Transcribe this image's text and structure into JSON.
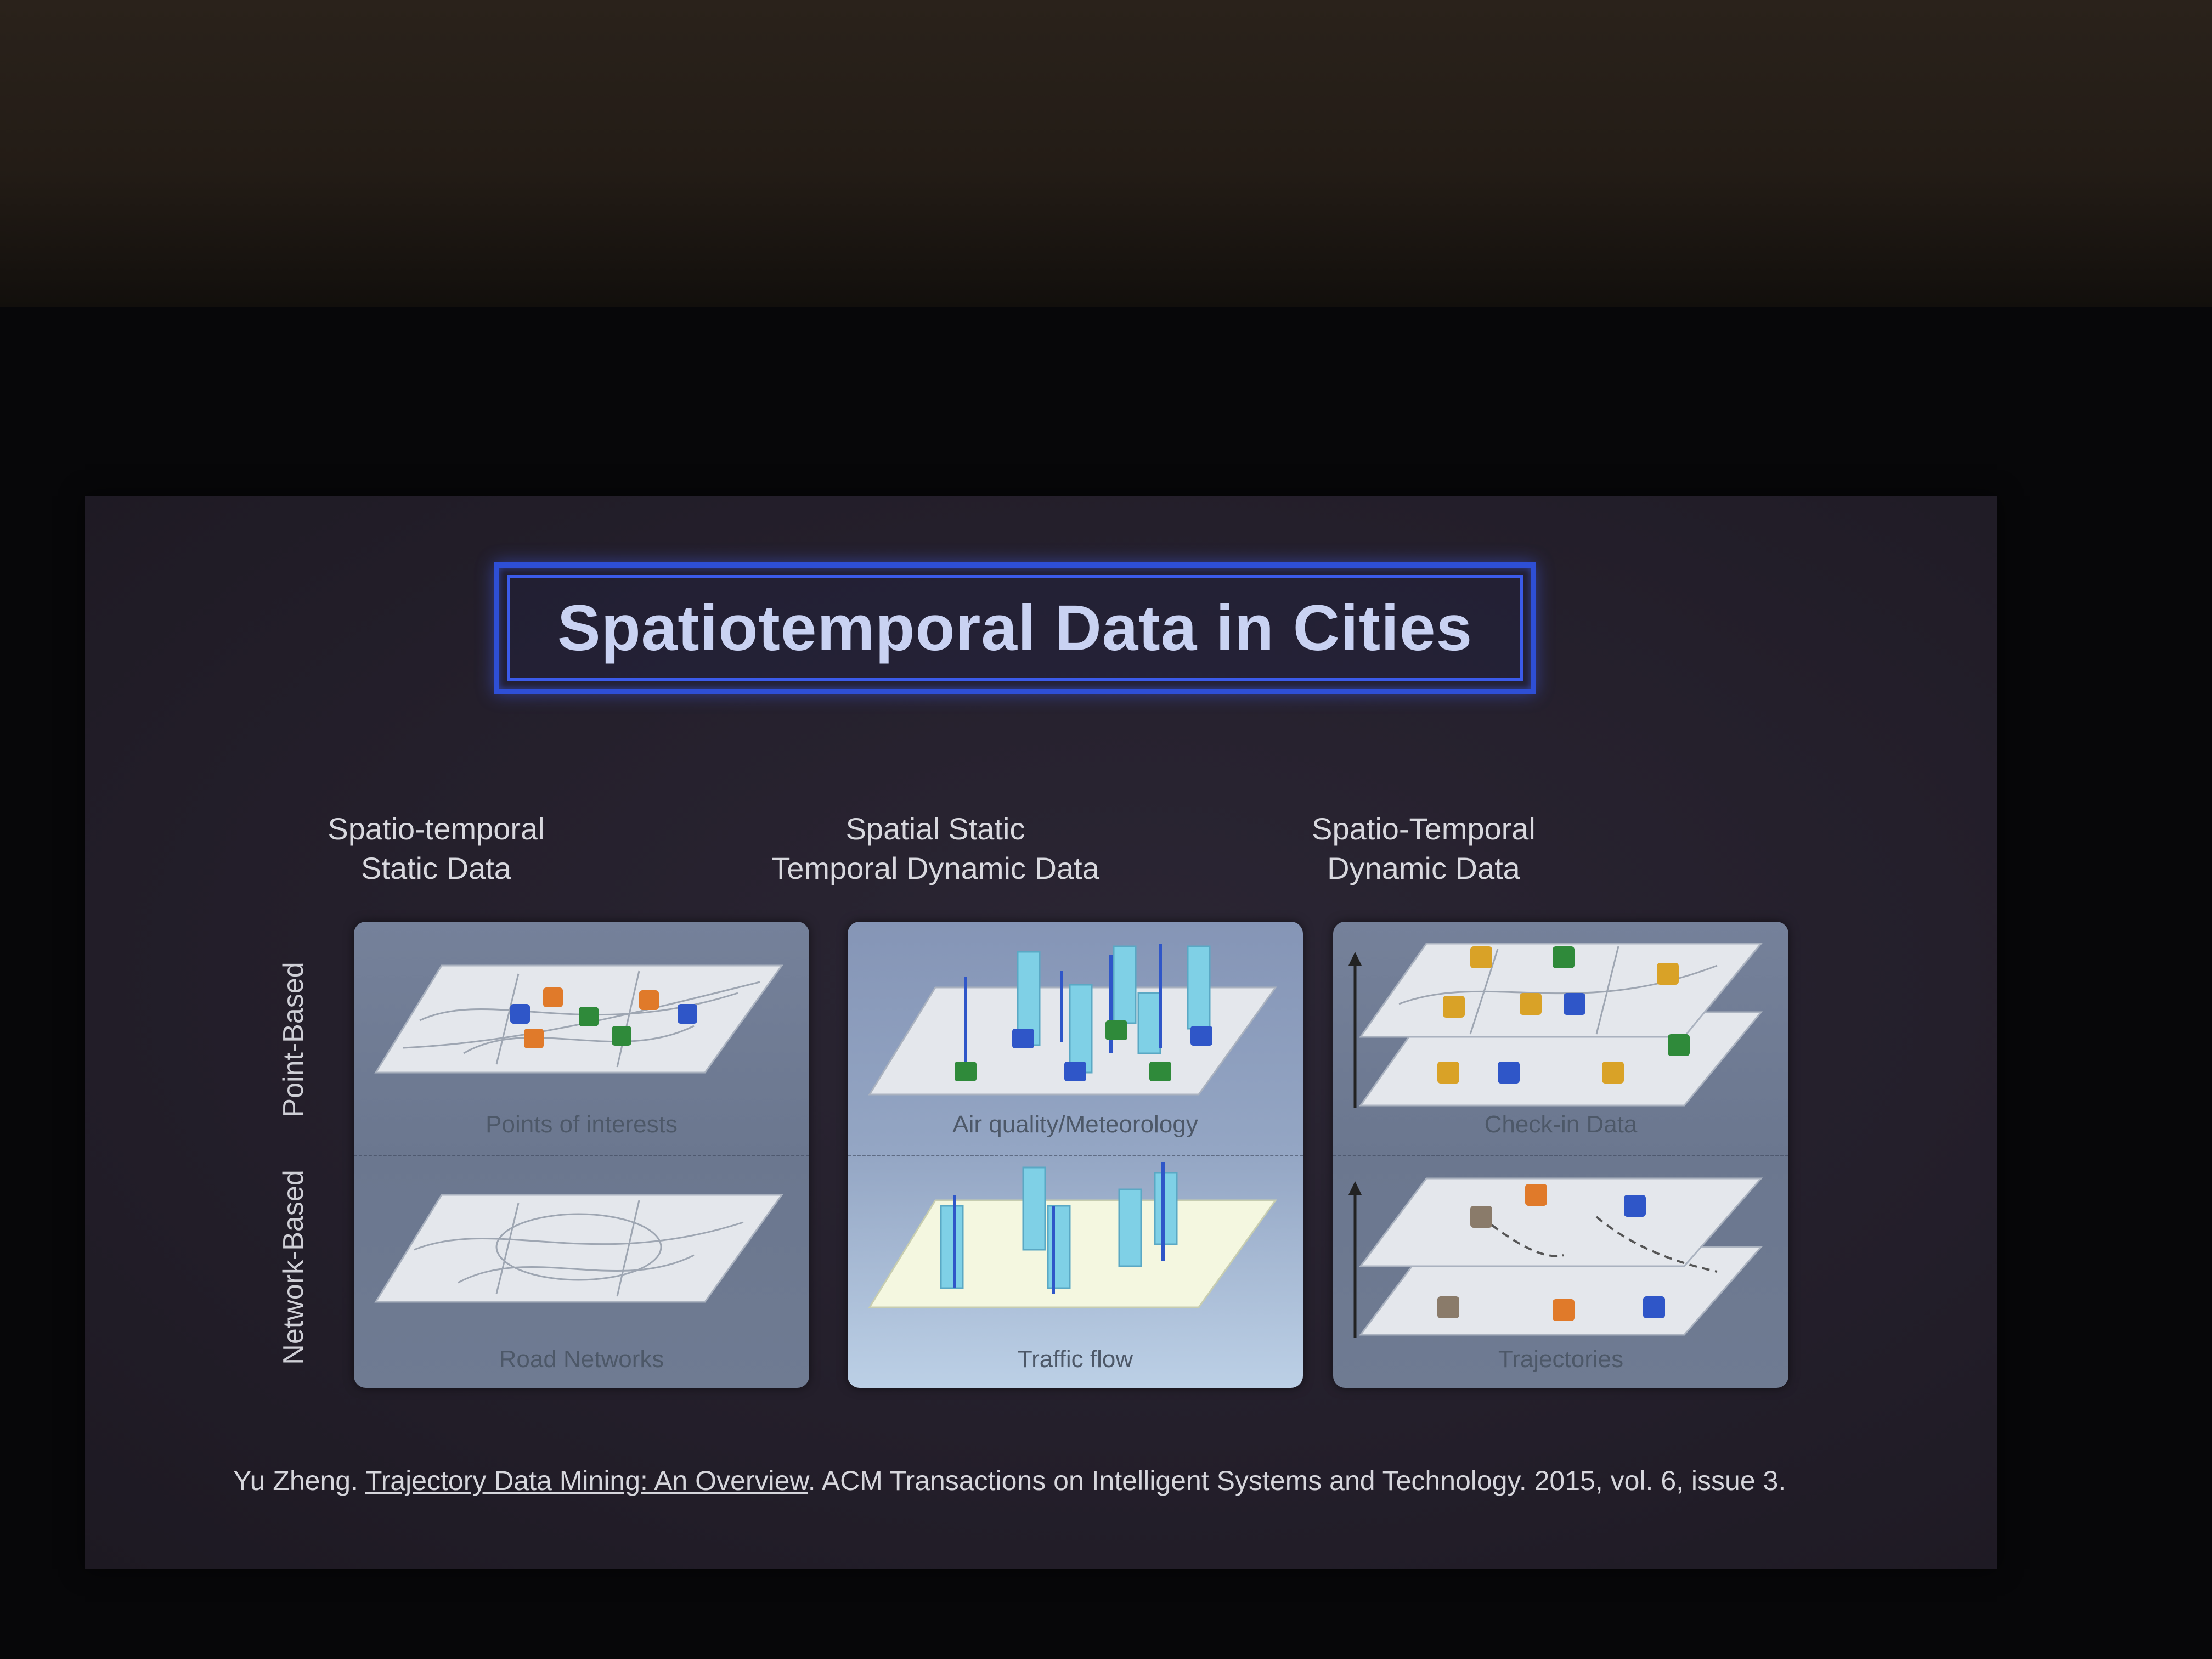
{
  "slide": {
    "title": "Spatiotemporal Data in Cities",
    "columns": [
      {
        "line1": "Spatio-temporal",
        "line2": "Static Data"
      },
      {
        "line1": "Spatial Static",
        "line2": "Temporal Dynamic Data"
      },
      {
        "line1": "Spatio-Temporal",
        "line2": "Dynamic Data"
      }
    ],
    "rows": [
      "Point-Based",
      "Network-Based"
    ],
    "captions": {
      "poi": "Points of interests",
      "road": "Road Networks",
      "air": "Air quality/Meteorology",
      "traffic": "Traffic flow",
      "checkin": "Check-in Data",
      "traj": "Trajectories"
    },
    "citation": {
      "author": "Yu Zheng. ",
      "link": "Trajectory Data Mining: An Overview",
      "rest": ". ACM Transactions on Intelligent Systems and Technology. 2015, vol. 6, issue 3."
    }
  },
  "colors": {
    "title_border": "#2e4fd6",
    "plane": "#e4e7ec",
    "poi_orange": "#e07a2a",
    "poi_blue": "#2f56c8",
    "poi_green": "#2f8a3a",
    "poi_yellow": "#d9a227",
    "pillar": "#7fd0e6"
  }
}
